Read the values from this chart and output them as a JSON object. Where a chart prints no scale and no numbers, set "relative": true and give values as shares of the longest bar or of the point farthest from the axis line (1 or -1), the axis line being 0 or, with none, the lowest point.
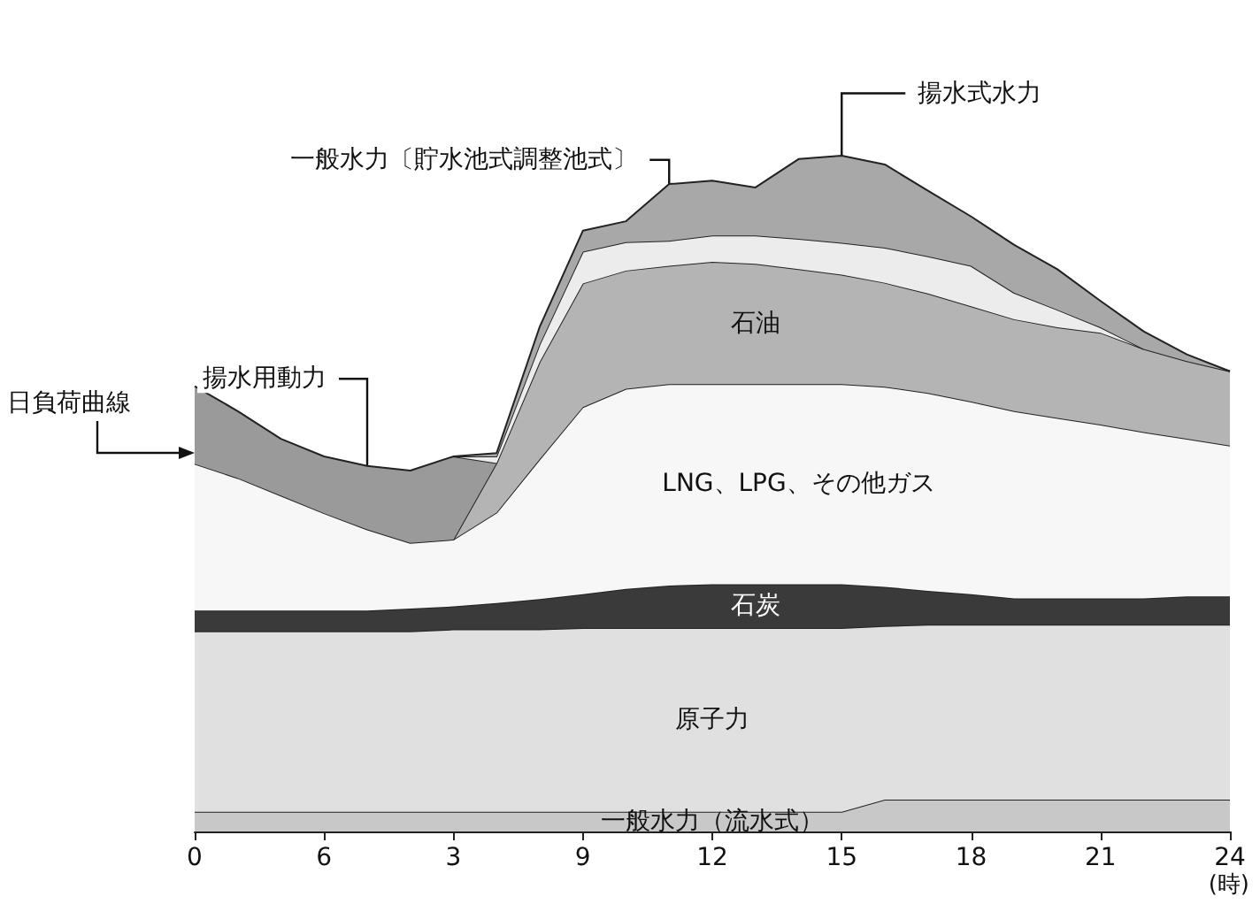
{
  "chart_data": {
    "type": "area",
    "stacked": true,
    "relative": true,
    "xlabel": "(時)",
    "legend": false,
    "grid": false,
    "marker": "none",
    "categories": [
      "0",
      null,
      null,
      "6",
      null,
      null,
      "3",
      null,
      null,
      "9",
      null,
      null,
      "12",
      null,
      null,
      "15",
      null,
      null,
      "18",
      null,
      null,
      "21",
      null,
      null,
      "24"
    ],
    "series": [
      {
        "name": "一般水力（流水式）",
        "color": "#c8c8c8",
        "values": [
          0.029,
          0.029,
          0.029,
          0.029,
          0.029,
          0.029,
          0.029,
          0.029,
          0.029,
          0.029,
          0.029,
          0.029,
          0.029,
          0.029,
          0.029,
          0.029,
          0.047,
          0.047,
          0.047,
          0.047,
          0.047,
          0.047,
          0.047,
          0.047,
          0.047
        ]
      },
      {
        "name": "原子力",
        "color": "#e0e0e0",
        "values": [
          0.267,
          0.267,
          0.267,
          0.267,
          0.267,
          0.267,
          0.27,
          0.27,
          0.27,
          0.272,
          0.272,
          0.272,
          0.272,
          0.272,
          0.272,
          0.272,
          0.257,
          0.259,
          0.259,
          0.259,
          0.259,
          0.259,
          0.259,
          0.259,
          0.259
        ]
      },
      {
        "name": "石炭",
        "color": "#3a3a3a",
        "values": [
          0.031,
          0.031,
          0.031,
          0.031,
          0.031,
          0.034,
          0.034,
          0.039,
          0.045,
          0.05,
          0.058,
          0.063,
          0.065,
          0.065,
          0.065,
          0.065,
          0.058,
          0.05,
          0.045,
          0.039,
          0.039,
          0.039,
          0.039,
          0.042,
          0.042
        ]
      },
      {
        "name": "LNG、LPG、その他ガス",
        "color": "#f7f7f7",
        "values": [
          0.217,
          0.196,
          0.17,
          0.144,
          0.12,
          0.097,
          0.099,
          0.134,
          0.207,
          0.277,
          0.296,
          0.298,
          0.296,
          0.296,
          0.296,
          0.296,
          0.296,
          0.293,
          0.285,
          0.277,
          0.267,
          0.257,
          0.246,
          0.233,
          0.223
        ]
      },
      {
        "name": "石油",
        "color": "#b4b4b4",
        "values": [
          null,
          null,
          null,
          null,
          null,
          null,
          0,
          0.073,
          0.144,
          0.183,
          0.175,
          0.175,
          0.181,
          0.178,
          0.17,
          0.162,
          0.154,
          0.147,
          0.141,
          0.136,
          0.134,
          0.136,
          0.123,
          0.115,
          0.11
        ]
      },
      {
        "name": "揚水用動力",
        "color": "#9a9a9a",
        "values": [
          0.115,
          0.099,
          0.084,
          0.084,
          0.094,
          0.107,
          0.123,
          0,
          null,
          null,
          null,
          null,
          null,
          null,
          null,
          null,
          null,
          null,
          null,
          null,
          null,
          null,
          null,
          null,
          null
        ]
      },
      {
        "name": "一般水力〔貯水池式調整池式〕",
        "color": "#ececec",
        "values": [
          null,
          null,
          null,
          null,
          null,
          null,
          0,
          0.01,
          0.026,
          0.047,
          0.042,
          0.037,
          0.039,
          0.042,
          0.045,
          0.047,
          0.052,
          0.055,
          0.06,
          0.039,
          0.026,
          0.008,
          0,
          null,
          null
        ]
      },
      {
        "name": "揚水式水力",
        "color": "#a8a8a8",
        "values": [
          null,
          null,
          null,
          null,
          null,
          null,
          0,
          0.005,
          0.026,
          0.031,
          0.031,
          0.084,
          0.081,
          0.071,
          0.118,
          0.129,
          0.123,
          0.097,
          0.073,
          0.071,
          0.06,
          0.039,
          0.026,
          0.01,
          0
        ]
      }
    ],
    "annotations": [
      "日負荷曲線"
    ]
  }
}
